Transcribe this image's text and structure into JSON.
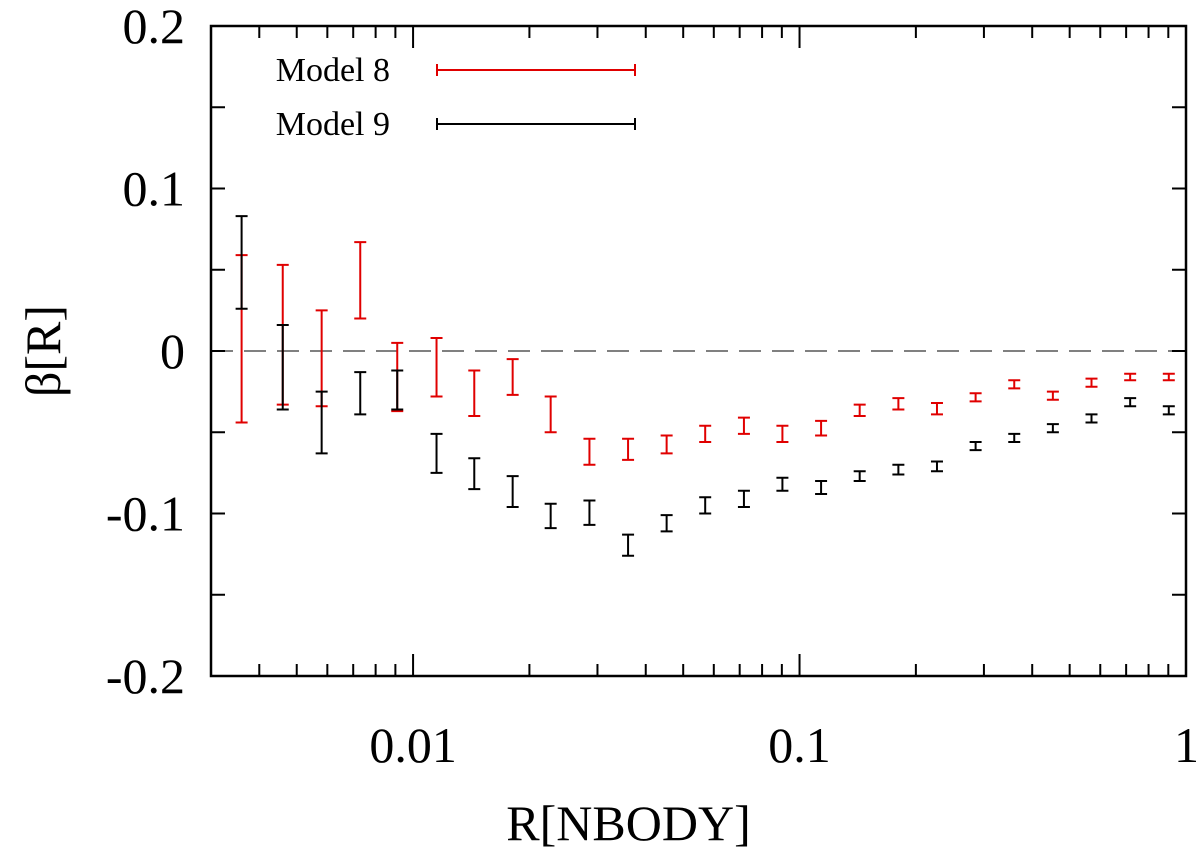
{
  "chart_data": {
    "type": "scatter",
    "title": "",
    "xlabel": "R[NBODY]",
    "ylabel": "β[R]",
    "xscale": "log",
    "xlim": [
      0.003,
      1
    ],
    "ylim": [
      -0.2,
      0.2
    ],
    "x_ticks": [
      {
        "value": 0.01,
        "label": "0.01"
      },
      {
        "value": 0.1,
        "label": "0.1"
      },
      {
        "value": 1,
        "label": "1"
      }
    ],
    "y_ticks": [
      {
        "value": 0.2,
        "label": "0.2"
      },
      {
        "value": 0.1,
        "label": "0.1"
      },
      {
        "value": 0,
        "label": "0"
      },
      {
        "value": -0.1,
        "label": "-0.1"
      },
      {
        "value": -0.2,
        "label": "-0.2"
      }
    ],
    "reference_line": {
      "y": 0,
      "style": "dashed",
      "color": "#808080"
    },
    "legend_position": "top-left",
    "series": [
      {
        "name": "Model 8",
        "color": "#e00000",
        "points": [
          {
            "x": 0.0036,
            "low": -0.044,
            "high": 0.059
          },
          {
            "x": 0.0046,
            "low": -0.033,
            "high": 0.053
          },
          {
            "x": 0.0058,
            "low": -0.034,
            "high": 0.025
          },
          {
            "x": 0.0073,
            "low": 0.02,
            "high": 0.067
          },
          {
            "x": 0.0091,
            "low": -0.037,
            "high": 0.005
          },
          {
            "x": 0.0115,
            "low": -0.028,
            "high": 0.008
          },
          {
            "x": 0.0144,
            "low": -0.04,
            "high": -0.012
          },
          {
            "x": 0.0181,
            "low": -0.027,
            "high": -0.005
          },
          {
            "x": 0.0227,
            "low": -0.05,
            "high": -0.028
          },
          {
            "x": 0.0286,
            "low": -0.07,
            "high": -0.054
          },
          {
            "x": 0.036,
            "low": -0.067,
            "high": -0.054
          },
          {
            "x": 0.0453,
            "low": -0.063,
            "high": -0.052
          },
          {
            "x": 0.057,
            "low": -0.056,
            "high": -0.046
          },
          {
            "x": 0.0718,
            "low": -0.051,
            "high": -0.041
          },
          {
            "x": 0.0903,
            "low": -0.056,
            "high": -0.046
          },
          {
            "x": 0.1137,
            "low": -0.052,
            "high": -0.043
          },
          {
            "x": 0.1431,
            "low": -0.04,
            "high": -0.033
          },
          {
            "x": 0.1802,
            "low": -0.036,
            "high": -0.029
          },
          {
            "x": 0.2268,
            "low": -0.039,
            "high": -0.032
          },
          {
            "x": 0.2855,
            "low": -0.031,
            "high": -0.026
          },
          {
            "x": 0.3594,
            "low": -0.023,
            "high": -0.018
          },
          {
            "x": 0.4524,
            "low": -0.03,
            "high": -0.025
          },
          {
            "x": 0.5695,
            "low": -0.022,
            "high": -0.017
          },
          {
            "x": 0.717,
            "low": -0.018,
            "high": -0.014
          },
          {
            "x": 0.9026,
            "low": -0.018,
            "high": -0.014
          }
        ]
      },
      {
        "name": "Model 9",
        "color": "#000000",
        "points": [
          {
            "x": 0.0036,
            "low": 0.026,
            "high": 0.083
          },
          {
            "x": 0.0046,
            "low": -0.036,
            "high": 0.016
          },
          {
            "x": 0.0058,
            "low": -0.063,
            "high": -0.025
          },
          {
            "x": 0.0073,
            "low": -0.039,
            "high": -0.013
          },
          {
            "x": 0.0091,
            "low": -0.036,
            "high": -0.012
          },
          {
            "x": 0.0115,
            "low": -0.075,
            "high": -0.051
          },
          {
            "x": 0.0144,
            "low": -0.085,
            "high": -0.066
          },
          {
            "x": 0.0181,
            "low": -0.096,
            "high": -0.077
          },
          {
            "x": 0.0227,
            "low": -0.109,
            "high": -0.094
          },
          {
            "x": 0.0286,
            "low": -0.107,
            "high": -0.092
          },
          {
            "x": 0.036,
            "low": -0.126,
            "high": -0.113
          },
          {
            "x": 0.0453,
            "low": -0.111,
            "high": -0.101
          },
          {
            "x": 0.057,
            "low": -0.1,
            "high": -0.09
          },
          {
            "x": 0.0718,
            "low": -0.096,
            "high": -0.086
          },
          {
            "x": 0.0903,
            "low": -0.086,
            "high": -0.078
          },
          {
            "x": 0.1137,
            "low": -0.088,
            "high": -0.08
          },
          {
            "x": 0.1431,
            "low": -0.08,
            "high": -0.074
          },
          {
            "x": 0.1802,
            "low": -0.076,
            "high": -0.07
          },
          {
            "x": 0.2268,
            "low": -0.074,
            "high": -0.068
          },
          {
            "x": 0.2855,
            "low": -0.061,
            "high": -0.056
          },
          {
            "x": 0.3594,
            "low": -0.056,
            "high": -0.051
          },
          {
            "x": 0.4524,
            "low": -0.05,
            "high": -0.045
          },
          {
            "x": 0.5695,
            "low": -0.044,
            "high": -0.039
          },
          {
            "x": 0.717,
            "low": -0.034,
            "high": -0.029
          },
          {
            "x": 0.9026,
            "low": -0.039,
            "high": -0.034
          }
        ]
      }
    ]
  }
}
